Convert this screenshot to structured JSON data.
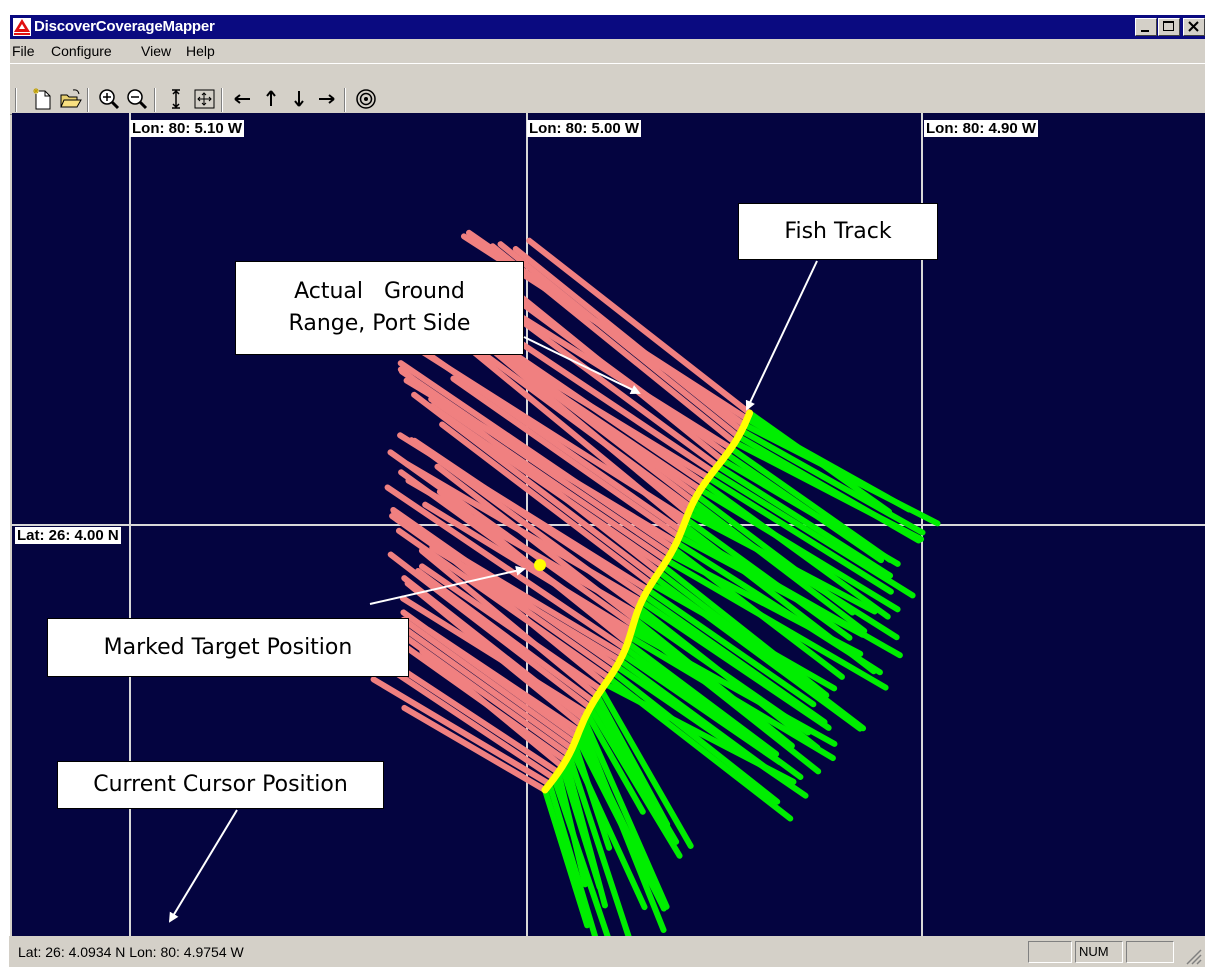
{
  "window": {
    "title": "DiscoverCoverageMapper"
  },
  "menu": [
    "File",
    "Configure",
    "View",
    "Help"
  ],
  "toolbar": {
    "buttons": [
      "new-file-icon",
      "open-folder-icon",
      "zoom-in-icon",
      "zoom-out-icon",
      "fit-vertical-icon",
      "fit-all-icon",
      "pan-left-icon",
      "pan-up-icon",
      "pan-down-icon",
      "pan-right-icon",
      "target-icon"
    ]
  },
  "map": {
    "lon_labels": [
      "Lon: 80: 5.10 W",
      "Lon: 80: 5.00 W",
      "Lon: 80: 4.90 W"
    ],
    "lat_label": "Lat: 26: 4.00 N",
    "colors": {
      "background": "#040440",
      "grid": "#d0d0d0",
      "port_side": "#f08080",
      "starboard_side": "#00ee00",
      "fish_track": "#ffff00",
      "target": "#ffff00"
    }
  },
  "callouts": {
    "fish_track": "Fish Track",
    "ground_range_line1": "Actual   Ground",
    "ground_range_line2": "Range, Port Side",
    "marked_target": "Marked Target Position",
    "cursor_position": "Current Cursor Position"
  },
  "status": {
    "cursor": "Lat: 26: 4.0934 N   Lon: 80: 4.9754 W",
    "num": "NUM"
  }
}
